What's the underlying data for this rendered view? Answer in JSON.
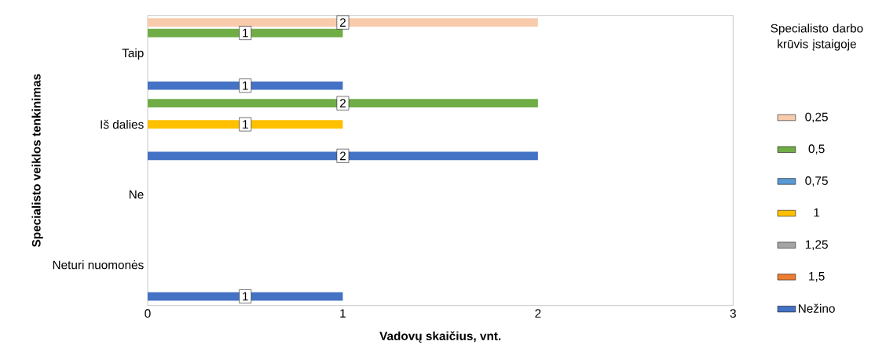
{
  "chart_data": {
    "type": "bar",
    "orientation": "horizontal",
    "categories": [
      "Taip",
      "Iš dalies",
      "Ne",
      "Neturi nuomonės"
    ],
    "series": [
      {
        "name": "0,25",
        "color": "#f8cbad",
        "values": [
          2,
          null,
          null,
          null
        ]
      },
      {
        "name": "0,5",
        "color": "#70ad47",
        "values": [
          1,
          2,
          null,
          null
        ]
      },
      {
        "name": "0,75",
        "color": "#5b9bd5",
        "values": [
          null,
          null,
          null,
          null
        ]
      },
      {
        "name": "1",
        "color": "#ffc000",
        "values": [
          null,
          1,
          null,
          null
        ]
      },
      {
        "name": "1,25",
        "color": "#a5a5a5",
        "values": [
          null,
          null,
          null,
          null
        ]
      },
      {
        "name": "1,5",
        "color": "#ed7d31",
        "values": [
          null,
          null,
          null,
          null
        ]
      },
      {
        "name": "Nežino",
        "color": "#4472c4",
        "values": [
          1,
          2,
          null,
          1
        ]
      }
    ],
    "xlim": [
      0,
      3
    ],
    "xticks": [
      0,
      1,
      2,
      3
    ],
    "xlabel": "Vadovų skaičius, vnt.",
    "ylabel": "Specialisto veiklos tenkinimas",
    "legend_title": "Specialisto darbo krūvis įstaigoje",
    "legend": "right",
    "data_labels": true
  }
}
